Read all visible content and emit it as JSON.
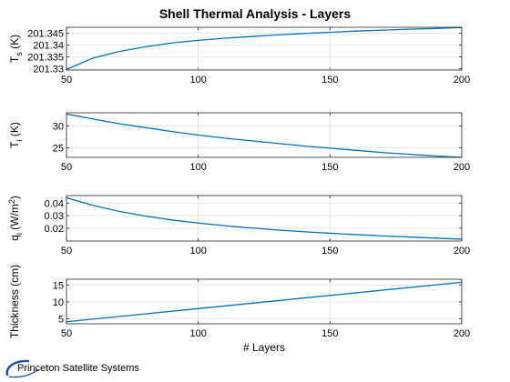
{
  "title": "Shell Thermal Analysis - Layers",
  "brand": {
    "name": "Princeton Satellite Systems"
  },
  "colors": {
    "line": "#0072BD",
    "grid": "#e6e6e6",
    "axis": "#262626",
    "logo": "#1f4e9c"
  },
  "chart_data": [
    {
      "type": "line",
      "title": "Shell Thermal Analysis - Layers",
      "xlabel": "",
      "ylabel": "T_s (K)",
      "ylabel_main": "T",
      "ylabel_sub": "s",
      "ylabel_tail": " (K)",
      "xlim": [
        50,
        200
      ],
      "ylim": [
        201.3295,
        201.3475
      ],
      "xticks": [
        "50",
        "100",
        "150",
        "200"
      ],
      "yticks": [
        "201.33",
        "201.335",
        "201.34",
        "201.345"
      ],
      "grid": true,
      "x": [
        50,
        60,
        70,
        80,
        90,
        100,
        110,
        120,
        130,
        140,
        150,
        160,
        170,
        180,
        190,
        200
      ],
      "y": [
        201.3298,
        201.3345,
        201.3373,
        201.3393,
        201.3409,
        201.342,
        201.3429,
        201.3436,
        201.3443,
        201.3449,
        201.3454,
        201.3459,
        201.3463,
        201.3467,
        201.347,
        201.3474
      ]
    },
    {
      "type": "line",
      "xlabel": "",
      "ylabel": "T_i (K)",
      "ylabel_main": "T",
      "ylabel_sub": "i",
      "ylabel_tail": " (K)",
      "xlim": [
        50,
        200
      ],
      "ylim": [
        22.8,
        33
      ],
      "xticks": [
        "50",
        "100",
        "150",
        "200"
      ],
      "yticks": [
        "25",
        "30"
      ],
      "grid": true,
      "x": [
        50,
        60,
        70,
        80,
        90,
        100,
        110,
        120,
        130,
        140,
        150,
        160,
        170,
        180,
        190,
        200
      ],
      "y": [
        32.7,
        31.6,
        30.5,
        29.6,
        28.7,
        27.9,
        27.2,
        26.6,
        26.0,
        25.4,
        24.9,
        24.4,
        23.9,
        23.5,
        23.1,
        22.8
      ]
    },
    {
      "type": "line",
      "xlabel": "",
      "ylabel": "q_i (W/m^2)",
      "ylabel_main": "q",
      "ylabel_sub": "i",
      "ylabel_mid": " (W/m",
      "ylabel_sup": "2",
      "ylabel_tail": ")",
      "xlim": [
        50,
        200
      ],
      "ylim": [
        0.0098,
        0.046
      ],
      "xticks": [
        "50",
        "100",
        "150",
        "200"
      ],
      "yticks": [
        "0.02",
        "0.03",
        "0.04"
      ],
      "grid": true,
      "x": [
        50,
        60,
        70,
        80,
        90,
        100,
        110,
        120,
        130,
        140,
        150,
        160,
        170,
        180,
        190,
        200
      ],
      "y": [
        0.0443,
        0.0382,
        0.0334,
        0.0296,
        0.0266,
        0.0241,
        0.022,
        0.0202,
        0.0186,
        0.0172,
        0.016,
        0.0149,
        0.0139,
        0.013,
        0.0121,
        0.0113
      ]
    },
    {
      "type": "line",
      "xlabel": "# Layers",
      "ylabel": "Thickness (cm)",
      "xlim": [
        50,
        200
      ],
      "ylim": [
        3.5,
        16.7
      ],
      "xticks": [
        "50",
        "100",
        "150",
        "200"
      ],
      "yticks": [
        "5",
        "10",
        "15"
      ],
      "grid": true,
      "x": [
        50,
        100,
        150,
        200
      ],
      "y": [
        4.1,
        8.0,
        11.9,
        15.8
      ]
    }
  ]
}
